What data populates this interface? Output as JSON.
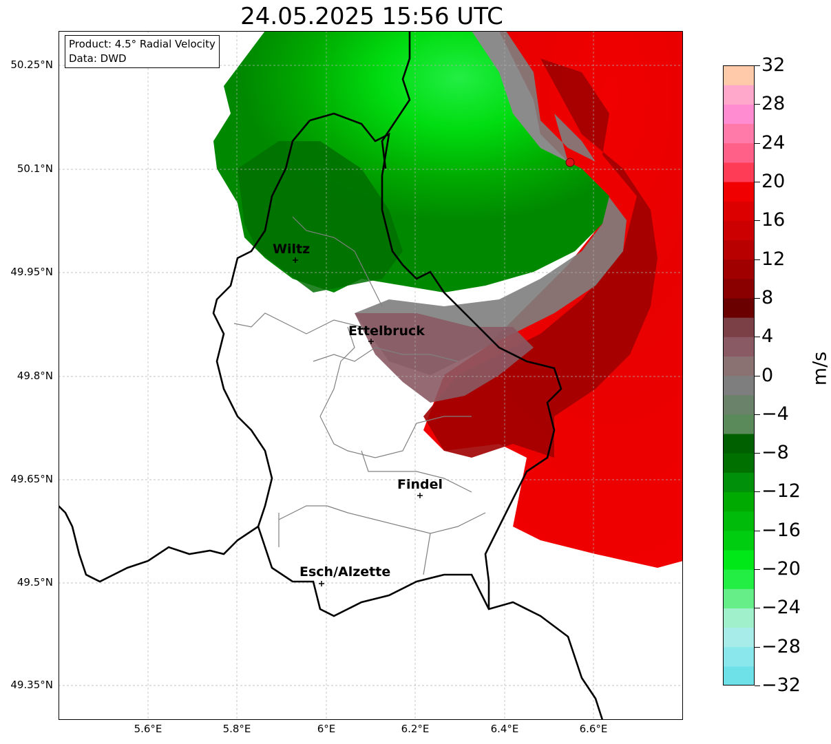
{
  "title": "24.05.2025 15:56 UTC",
  "info": {
    "product": "Product: 4.5° Radial Velocity",
    "source": "Data: DWD"
  },
  "axes": {
    "lat_ticks": [
      "50.25°N",
      "50.1°N",
      "49.95°N",
      "49.8°N",
      "49.65°N",
      "49.5°N",
      "49.35°N"
    ],
    "lon_ticks": [
      "5.6°E",
      "5.8°E",
      "6°E",
      "6.2°E",
      "6.4°E",
      "6.6°E"
    ],
    "lon_range": [
      5.4,
      6.8
    ],
    "lat_range": [
      49.3,
      50.3
    ],
    "grid": true
  },
  "cities": [
    {
      "name": "Wiltz",
      "lon": 5.935,
      "lat": 49.966
    },
    {
      "name": "Ettelbruck",
      "lon": 6.104,
      "lat": 49.848
    },
    {
      "name": "Findel",
      "lon": 6.211,
      "lat": 49.627
    },
    {
      "name": "Esch/Alzette",
      "lon": 5.98,
      "lat": 49.5
    }
  ],
  "radar_marker": {
    "lon": 6.548,
    "lat": 50.109,
    "color": "#e0101a"
  },
  "colorbar": {
    "label": "m/s",
    "min": -32,
    "max": 32,
    "ticks": [
      "32",
      "28",
      "24",
      "20",
      "16",
      "12",
      "8",
      "4",
      "0",
      "−4",
      "−8",
      "−12",
      "−16",
      "−20",
      "−24",
      "−28",
      "−32"
    ],
    "colors_bottom_to_top": [
      "#6ee0e8",
      "#8ae8ec",
      "#a8ecea",
      "#a0f0cc",
      "#66ee88",
      "#22ee44",
      "#00e818",
      "#00cc10",
      "#00bb0a",
      "#00aa00",
      "#00900a",
      "#007000",
      "#006000",
      "#5a8a5a",
      "#6a826a",
      "#7e7e7e",
      "#8a7272",
      "#8a5a64",
      "#7a4046",
      "#6a0000",
      "#8a0000",
      "#a00000",
      "#b80000",
      "#cc0000",
      "#dd0000",
      "#f00000",
      "#ff3c56",
      "#ff6088",
      "#ff7aa8",
      "#ff8cd0",
      "#ffa8cc",
      "#ffcaaa"
    ]
  },
  "regions": {
    "green_north": "#00aa00",
    "green_bright": "#22ee44",
    "green_dark": "#006600",
    "gray_zero": "#7e7e7e",
    "mauve": "#8a5a64",
    "red_dark": "#a00000",
    "red": "#f00000"
  }
}
